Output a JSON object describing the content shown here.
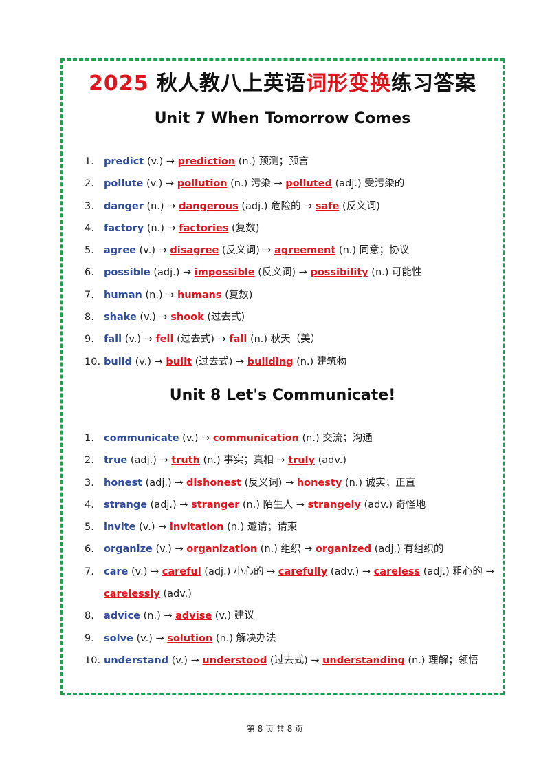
{
  "title": {
    "parts": [
      {
        "highlight": "2025"
      },
      " 秋人教八上英语",
      {
        "highlight": "词形变换"
      },
      "练习答案"
    ]
  },
  "sections": [
    {
      "heading": "Unit 7 When Tomorrow Comes",
      "items": [
        {
          "number": "1.",
          "parts": [
            {
              "word": "predict"
            },
            " (v.) → ",
            {
              "answer": "prediction"
            },
            " (n.) 预测；预言"
          ]
        },
        {
          "number": "2.",
          "parts": [
            {
              "word": "pollute"
            },
            " (v.) → ",
            {
              "answer": "pollution"
            },
            " (n.) 污染 → ",
            {
              "answer": "polluted"
            },
            " (adj.) 受污染的"
          ]
        },
        {
          "number": "3.",
          "parts": [
            {
              "word": "danger"
            },
            " (n.) → ",
            {
              "answer": "dangerous"
            },
            " (adj.) 危险的 → ",
            {
              "answer": "safe"
            },
            " (反义词)"
          ]
        },
        {
          "number": "4.",
          "parts": [
            {
              "word": "factory"
            },
            " (n.) → ",
            {
              "answer": "factories"
            },
            " (复数)"
          ]
        },
        {
          "number": "5.",
          "parts": [
            {
              "word": "agree"
            },
            " (v.) → ",
            {
              "answer": "disagree"
            },
            " (反义词) → ",
            {
              "answer": "agreement"
            },
            " (n.) 同意；协议"
          ]
        },
        {
          "number": "6.",
          "parts": [
            {
              "word": "possible"
            },
            " (adj.) → ",
            {
              "answer": "impossible"
            },
            " (反义词) → ",
            {
              "answer": "possibility"
            },
            " (n.) 可能性"
          ]
        },
        {
          "number": "7.",
          "parts": [
            {
              "word": "human"
            },
            " (n.) → ",
            {
              "answer": "humans"
            },
            " (复数)"
          ]
        },
        {
          "number": "8.",
          "parts": [
            {
              "word": "shake"
            },
            " (v.) → ",
            {
              "answer": "shook"
            },
            " (过去式)"
          ]
        },
        {
          "number": "9.",
          "parts": [
            {
              "word": "fall"
            },
            " (v.) → ",
            {
              "answer": "fell"
            },
            " (过去式) → ",
            {
              "answer": "fall"
            },
            " (n.) 秋天（美）"
          ]
        },
        {
          "number": "10.",
          "parts": [
            {
              "word": "build"
            },
            " (v.) → ",
            {
              "answer": "built"
            },
            " (过去式) → ",
            {
              "answer": "building"
            },
            " (n.) 建筑物"
          ]
        }
      ]
    },
    {
      "heading": "Unit 8 Let's Communicate!",
      "items": [
        {
          "number": "1.",
          "parts": [
            {
              "word": "communicate"
            },
            " (v.) → ",
            {
              "answer": "communication"
            },
            " (n.) 交流；沟通"
          ]
        },
        {
          "number": "2.",
          "parts": [
            {
              "word": "true"
            },
            " (adj.) → ",
            {
              "answer": "truth"
            },
            " (n.) 事实；真相 → ",
            {
              "answer": "truly"
            },
            " (adv.)"
          ]
        },
        {
          "number": "3.",
          "parts": [
            {
              "word": "honest"
            },
            " (adj.) → ",
            {
              "answer": "dishonest"
            },
            " (反义词) → ",
            {
              "answer": "honesty"
            },
            " (n.) 诚实；正直"
          ]
        },
        {
          "number": "4.",
          "parts": [
            {
              "word": "strange"
            },
            " (adj.) → ",
            {
              "answer": "stranger"
            },
            " (n.) 陌生人 → ",
            {
              "answer": "strangely"
            },
            " (adv.) 奇怪地"
          ]
        },
        {
          "number": "5.",
          "parts": [
            {
              "word": "invite"
            },
            " (v.) → ",
            {
              "answer": "invitation"
            },
            " (n.) 邀请；请柬"
          ]
        },
        {
          "number": "6.",
          "parts": [
            {
              "word": "organize"
            },
            " (v.) → ",
            {
              "answer": "organization"
            },
            " (n.) 组织 → ",
            {
              "answer": "organized"
            },
            " (adj.) 有组织的"
          ]
        },
        {
          "number": "7.",
          "parts": [
            {
              "word": "care"
            },
            " (v.) → ",
            {
              "answer": "careful"
            },
            " (adj.) 小心的 → ",
            {
              "answer": "carefully"
            },
            " (adv.) → ",
            {
              "answer": "careless"
            },
            " (adj.) 粗心的 → ",
            {
              "answer": "carelessly"
            },
            " (adv.)"
          ]
        },
        {
          "number": "8.",
          "parts": [
            {
              "word": "advice"
            },
            " (n.) → ",
            {
              "answer": "advise"
            },
            " (v.) 建议"
          ]
        },
        {
          "number": "9.",
          "parts": [
            {
              "word": "solve"
            },
            " (v.) → ",
            {
              "answer": "solution"
            },
            " (n.) 解决办法"
          ]
        },
        {
          "number": "10.",
          "parts": [
            {
              "word": "understand"
            },
            " (v.) → ",
            {
              "answer": "understood"
            },
            " (过去式) → ",
            {
              "answer": "understanding"
            },
            " (n.) 理解；领悟"
          ]
        }
      ]
    }
  ],
  "footer": "第 8 页 共 8 页"
}
